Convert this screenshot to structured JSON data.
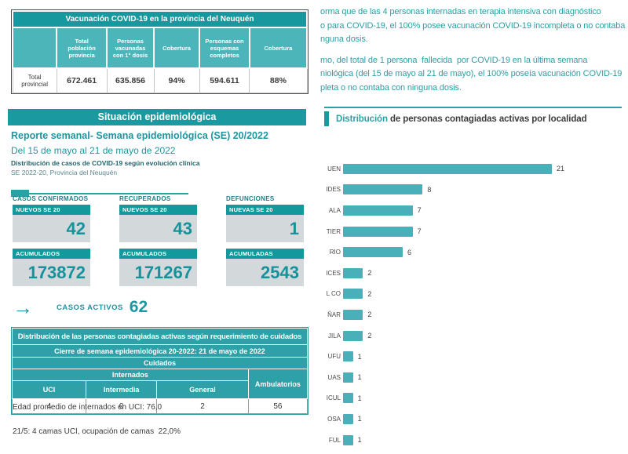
{
  "vaccination_table": {
    "title": "Vacunación COVID-19 en la provincia del Neuquén",
    "columns": [
      "",
      "Total población provincia",
      "Personas vacunadas con 1° dosis",
      "Cobertura",
      "Personas con esquemas completos",
      "Cobertura"
    ],
    "row_label": "Total provincial",
    "values": [
      "672.461",
      "635.856",
      "94%",
      "594.611",
      "88%"
    ]
  },
  "right_text": {
    "paragraph1_lines": [
      "orma que de las 4 personas internadas en terapia intensiva con diagnóstico",
      "o para COVID-19, el 100% posee vacunación COVID-19 incompleta o no contaba",
      "nguna dosis."
    ],
    "paragraph2_lines": [
      "mo, del total de 1 persona  fallecida  por COVID-19 en la última semana",
      "niológica (del 15 de mayo al 21 de mayo), el 100% poseía vacunación COVID-19",
      "pleta o no contaba con ninguna dosis."
    ]
  },
  "epi_section": {
    "band_title": "Situación epidemiológica",
    "report_title": "Reporte semanal- Semana epidemiológica (SE) 20/2022",
    "report_dates": "Del 15 de mayo al 21 de mayo de 2022",
    "report_sub1": "Distribución de casos de COVID-19 según evolución clínica",
    "report_sub2": "SE 2022-20, Provincia del Neuquén"
  },
  "stat_cards": {
    "groups": [
      {
        "label": "CASOS CONFIRMADOS",
        "new_header": "NUEVOS SE 20",
        "new_value": "42",
        "acc_header": "ACUMULADOS",
        "acc_value": "173872"
      },
      {
        "label": "RECUPERADOS",
        "new_header": "NUEVOS SE 20",
        "new_value": "43",
        "acc_header": "ACUMULADOS",
        "acc_value": "171267"
      },
      {
        "label": "DEFUNCIONES",
        "new_header": "NUEVAS SE 20",
        "new_value": "1",
        "acc_header": "ACUMULADAS",
        "acc_value": "2543"
      }
    ]
  },
  "active_cases": {
    "label": "CASOS ACTIVOS",
    "value": "62"
  },
  "care_table": {
    "title": "Distribución de las personas contagiadas activas según requerimiento de cuidados",
    "subtitle": "Cierre de semana epidemiológica 20-2022: 21 de mayo de 2022",
    "group_header": "Cuidados",
    "internados_header": "Internados",
    "ambulatorios_header": "Ambulatorios",
    "sub_headers": [
      "UCI",
      "Intermedia",
      "General"
    ],
    "values": [
      "4",
      "0",
      "2",
      "56"
    ]
  },
  "footnotes": {
    "uci_age": "Edad promedio de internados en UCI: 76,0",
    "beds": "21/5: 4 camas UCI, ocupación de camas  22,0%"
  },
  "chart_data": {
    "type": "bar",
    "orientation": "horizontal",
    "title_highlight": "Distribución",
    "title_rest": " de personas contagiadas activas por localidad",
    "categories": [
      "UEN",
      "IDES",
      "ALA",
      "TIER",
      "RIO",
      "ICES",
      "L CO",
      "ÑAR",
      "JILA",
      "UFU",
      "UAS",
      "ICUL",
      "OSA",
      "FUL"
    ],
    "values": [
      21,
      8,
      7,
      7,
      6,
      2,
      2,
      2,
      2,
      1,
      1,
      1,
      1,
      1
    ],
    "xlim": [
      0,
      21
    ],
    "value_labels": true,
    "legend": "none",
    "grid": false,
    "bar_color": "#49b0b9"
  },
  "colors": {
    "teal_dark": "#1a99a0",
    "teal_mid": "#4cb5ba",
    "teal_text": "#1d96a0",
    "paragraph_teal": "#2b9fa6",
    "card_body_gray": "#d3d8da",
    "bar": "#49b0b9",
    "dark_text": "#3c3c3c"
  }
}
